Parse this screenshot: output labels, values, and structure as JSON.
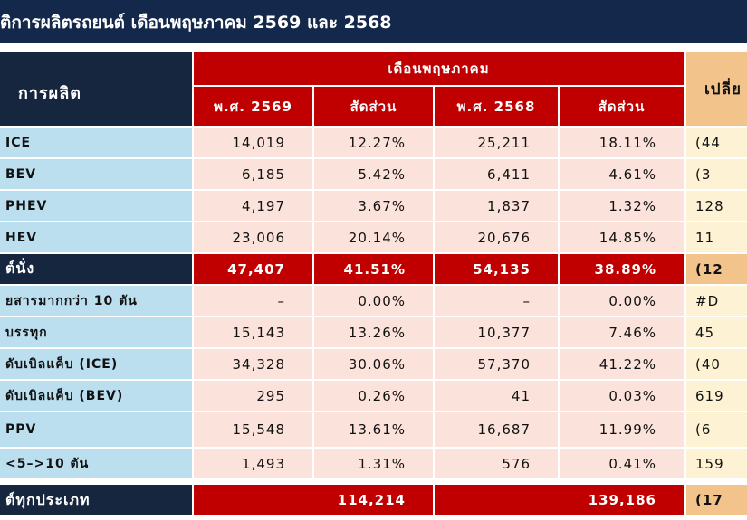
{
  "title": "ติการผลิตรถยนต์ เดือนพฤษภาคม 2569 และ 2568",
  "table": {
    "header": {
      "label": "การผลิต",
      "group": "เดือนพฤษภาคม",
      "change": "เปลี่ย",
      "columns": [
        "พ.ศ. 2569",
        "สัดส่วน",
        "พ.ศ. 2568",
        "สัดส่วน"
      ]
    },
    "rows": [
      {
        "label": "ICE",
        "cells": [
          "14,019",
          "12.27%",
          "25,211",
          "18.11%"
        ],
        "change": "(44"
      },
      {
        "label": "BEV",
        "cells": [
          "6,185",
          "5.42%",
          "6,411",
          "4.61%"
        ],
        "change": "(3"
      },
      {
        "label": "PHEV",
        "cells": [
          "4,197",
          "3.67%",
          "1,837",
          "1.32%"
        ],
        "change": "128"
      },
      {
        "label": "HEV",
        "cells": [
          "23,006",
          "20.14%",
          "20,676",
          "14.85%"
        ],
        "change": "11"
      },
      {
        "label": "ต์นั่ง",
        "cells": [
          "47,407",
          "41.51%",
          "54,135",
          "38.89%"
        ],
        "change": "(12"
      },
      {
        "label": "ยสารมากกว่า 10 ตัน",
        "cells": [
          "–",
          "0.00%",
          "–",
          "0.00%"
        ],
        "change": "#D"
      },
      {
        "label": "บรรทุก",
        "cells": [
          "15,143",
          "13.26%",
          "10,377",
          "7.46%"
        ],
        "change": "45"
      },
      {
        "label": "ดับเบิลแค็บ (ICE)",
        "cells": [
          "34,328",
          "30.06%",
          "57,370",
          "41.22%"
        ],
        "change": "(40"
      },
      {
        "label": "ดับเบิลแค็บ (BEV)",
        "cells": [
          "295",
          "0.26%",
          "41",
          "0.03%"
        ],
        "change": "619"
      },
      {
        "label": "PPV",
        "cells": [
          "15,548",
          "13.61%",
          "16,687",
          "11.99%"
        ],
        "change": "(6"
      },
      {
        "label": "<5–>10 ตัน",
        "cells": [
          "1,493",
          "1.31%",
          "576",
          "0.41%"
        ],
        "change": "159"
      }
    ],
    "total": {
      "label": "ต์ทุกประเภท",
      "cells": [
        "114,214",
        "139,186"
      ],
      "change": "(17"
    }
  }
}
